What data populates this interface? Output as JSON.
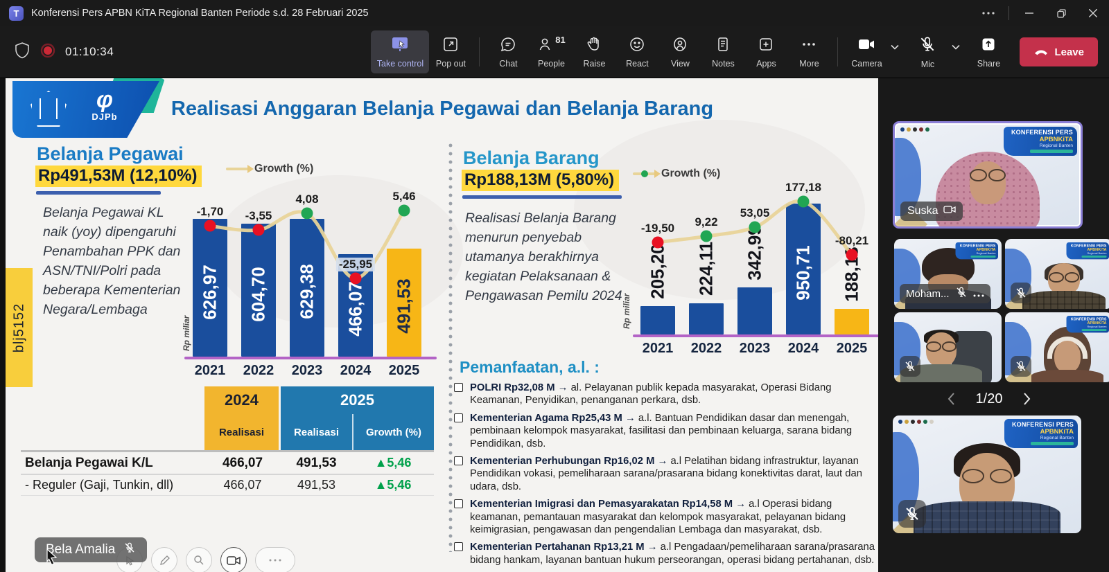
{
  "window": {
    "title": "Konferensi Pers APBN KiTA Regional Banten Periode s.d. 28 Februari 2025"
  },
  "toolbar": {
    "timer": "01:10:34",
    "take_control": "Take control",
    "pop_out": "Pop out",
    "chat": "Chat",
    "people": "People",
    "people_count": "81",
    "raise": "Raise",
    "react": "React",
    "view": "View",
    "notes": "Notes",
    "apps": "Apps",
    "more": "More",
    "camera": "Camera",
    "mic": "Mic",
    "share": "Share",
    "leave": "Leave"
  },
  "slide": {
    "title": "Realisasi Anggaran Belanja Pegawai dan Belanja Barang",
    "logo_text": "DJPb",
    "side_tab": "blj5152",
    "pegawai": {
      "heading": "Belanja Pegawai",
      "amount": "Rp491,53M (12,10%)",
      "note": "Belanja Pegawai KL naik (yoy) dipengaruhi Penambahan PPK dan ASN/TNI/Polri pada beberapa Kementerian Negara/Lembaga"
    },
    "barang": {
      "heading": "Belanja Barang",
      "amount": "Rp188,13M (5,80%)",
      "note": "Realisasi Belanja Barang menurun penyebab utamanya berakhirnya kegiatan Pelaksanaan & Pengawasan Pemilu 2024"
    },
    "table": {
      "year_2024": "2024",
      "year_2025": "2025",
      "sub_realisasi_2024": "Realisasi",
      "sub_realisasi_2025": "Realisasi",
      "sub_growth": "Growth (%)",
      "rows": [
        {
          "label": "Belanja Pegawai K/L",
          "v2024": "466,07",
          "v2025": "491,53",
          "growth": "▲5,46",
          "bold": true
        },
        {
          "label": "- Reguler (Gaji, Tunkin, dll)",
          "v2024": "466,07",
          "v2025": "491,53",
          "growth": "▲5,46",
          "bold": false
        }
      ]
    },
    "pemanfaatan": {
      "heading": "Pemanfaatan, a.l. :",
      "items": [
        {
          "lead": "POLRI Rp32,08 M",
          "arrow": "→",
          "text": "al. Pelayanan publik kepada masyarakat, Operasi Bidang Keamanan, Penyidikan, penanganan perkara, dsb."
        },
        {
          "lead": "Kementerian Agama Rp25,43 M",
          "arrow": "→",
          "text": "a.l. Bantuan Pendidikan dasar dan menengah, pembinaan kelompok masyarakat, fasilitasi dan pembinaan keluarga, sarana bidang Pendidikan, dsb."
        },
        {
          "lead": "Kementerian Perhubungan Rp16,02 M",
          "arrow": "→",
          "text": "a.l Pelatihan bidang infrastruktur, layanan Pendidikan vokasi, pemeliharaan sarana/prasarana bidang konektivitas darat, laut dan udara, dsb."
        },
        {
          "lead": "Kementerian Imigrasi dan Pemasyarakatan Rp14,58 M",
          "arrow": "→",
          "text": "a.l Operasi bidang keamanan, pemantauan masyarakat dan kelompok masyarakat, pelayanan bidang keimigrasian, pengawasan dan pengendalian Lembaga dan masyarakat, dsb."
        },
        {
          "lead": "Kementerian Pertahanan Rp13,21 M",
          "arrow": "→",
          "text": "a.l Pengadaan/pemeliharaan sarana/prasarana bidang hankam, layanan bantuan hukum perseorangan, operasi bidang pertahanan, dsb."
        }
      ]
    }
  },
  "chart_data": [
    {
      "type": "bar",
      "title": "Belanja Pegawai",
      "ylabel": "Rp miliar",
      "legend": "Growth (%)",
      "categories": [
        "2021",
        "2022",
        "2023",
        "2024",
        "2025"
      ],
      "series": [
        {
          "name": "Realisasi (Rp miliar)",
          "type": "bar",
          "values": [
            626.97,
            604.7,
            629.38,
            466.07,
            491.53
          ],
          "labels": [
            "626,97",
            "604,70",
            "629,38",
            "466,07",
            "491,53"
          ]
        },
        {
          "name": "Growth (%)",
          "type": "line",
          "values": [
            -1.7,
            -3.55,
            4.08,
            -25.95,
            5.46
          ],
          "labels": [
            "-1,70",
            "-3,55",
            "4,08",
            "-25,95",
            "5,46"
          ]
        }
      ],
      "ylim": [
        0,
        650
      ],
      "bar_color": "#1a4e9d",
      "last_bar_color": "#f7b616",
      "positive_dot_color": "#21a653",
      "negative_dot_color": "#e81123",
      "line_color": "#e8d499",
      "axis_color": "#b363c6"
    },
    {
      "type": "bar",
      "title": "Belanja Barang",
      "ylabel": "Rp miliar",
      "legend": "Growth (%)",
      "categories": [
        "2021",
        "2022",
        "2023",
        "2024",
        "2025"
      ],
      "series": [
        {
          "name": "Realisasi (Rp miliar)",
          "type": "bar",
          "values": [
            205.2,
            224.11,
            342.99,
            950.71,
            188.13
          ],
          "labels": [
            "205,20",
            "224,11",
            "342,99",
            "950,71",
            "188,13"
          ]
        },
        {
          "name": "Growth (%)",
          "type": "line",
          "values": [
            -19.5,
            9.22,
            53.05,
            177.18,
            -80.21
          ],
          "labels": [
            "-19,50",
            "9,22",
            "53,05",
            "177,18",
            "-80,21"
          ]
        }
      ],
      "ylim": [
        0,
        980
      ],
      "bar_color": "#1a4e9d",
      "last_bar_color": "#f7b616",
      "positive_dot_color": "#21a653",
      "negative_dot_color": "#e81123",
      "line_color": "#e8d499",
      "axis_color": "#b363c6"
    }
  ],
  "sidebar": {
    "pagination": "1/20",
    "banner": {
      "line1": "KONFERENSI PERS",
      "line2": "APBNKiTA",
      "line3": "Regional Banten"
    },
    "tiles": [
      {
        "name": "Suska"
      },
      {
        "name": "Moham..."
      }
    ]
  },
  "presenter": {
    "name": "Bela Amalia"
  }
}
